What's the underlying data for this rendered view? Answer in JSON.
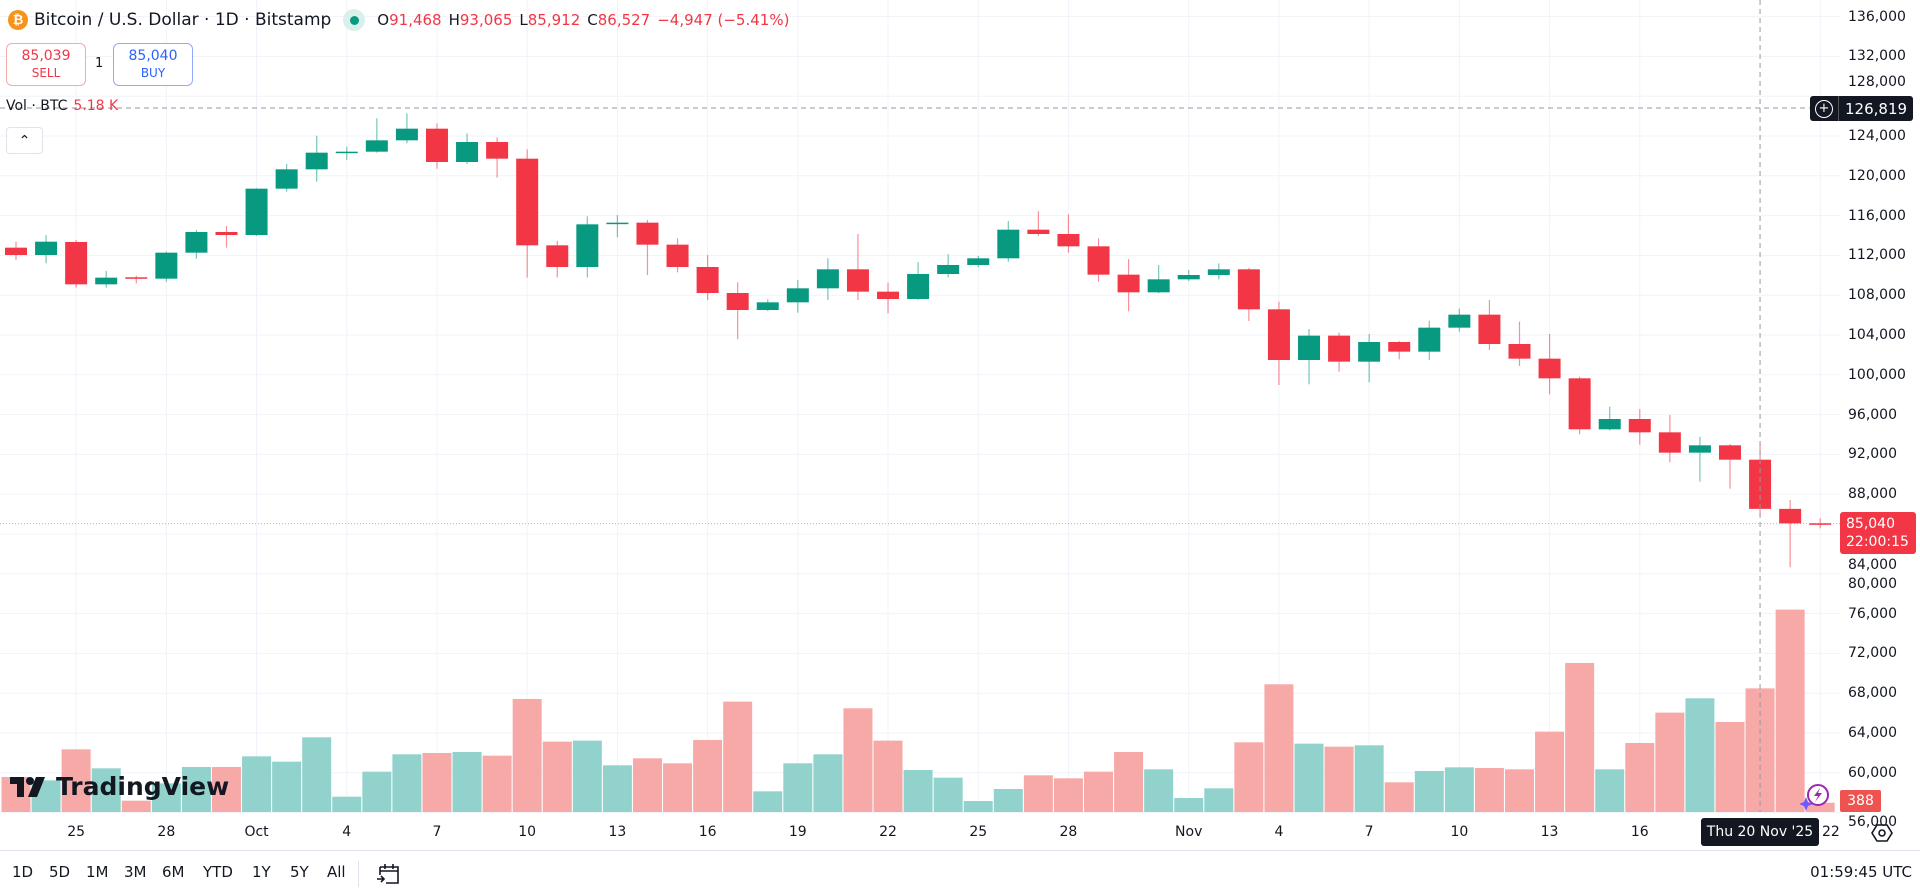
{
  "header": {
    "title": "Bitcoin / U.S. Dollar · 1D · Bitstamp",
    "logo_glyph": "₿",
    "market_status": "open",
    "ohlc": {
      "o_label": "O",
      "o": "91,468",
      "h_label": "H",
      "h": "93,065",
      "l_label": "L",
      "l": "85,912",
      "c_label": "C",
      "c": "86,527"
    },
    "change": "−4,947 (−5.41%)"
  },
  "trade": {
    "sell_price": "85,039",
    "sell_label": "SELL",
    "quantity": "1",
    "buy_price": "85,040",
    "buy_label": "BUY"
  },
  "volume_legend": {
    "label": "Vol · BTC",
    "value": "5.18 K"
  },
  "crosshair": {
    "price": "126,819",
    "date": "Thu 20 Nov '25"
  },
  "last_price": {
    "price": "85,040",
    "countdown": "22:00:15"
  },
  "last_volume": "388",
  "logo": "TradingView",
  "toolbar": {
    "ranges": [
      "1D",
      "5D",
      "1M",
      "3M",
      "6M",
      "YTD",
      "1Y",
      "5Y",
      "All"
    ],
    "clock": "01:59:45 UTC"
  },
  "colors": {
    "up": "#089981",
    "down": "#f23645",
    "vol_up": "#92d2cc",
    "vol_down": "#f7a9a7",
    "grid": "#f0f3fa"
  },
  "chart_data": {
    "type": "candlestick",
    "symbol": "BTCUSD",
    "interval": "1D",
    "ylim": [
      56000,
      136000
    ],
    "price_ticks": [
      136000,
      132000,
      128000,
      124000,
      120000,
      116000,
      112000,
      108000,
      104000,
      100000,
      96000,
      92000,
      88000,
      84000,
      80000,
      76000,
      72000,
      68000,
      64000,
      60000,
      56000
    ],
    "time_labels": [
      {
        "label": "25",
        "date": "2025-09-25"
      },
      {
        "label": "28",
        "date": "2025-09-28"
      },
      {
        "label": "Oct",
        "date": "2025-10-01"
      },
      {
        "label": "4",
        "date": "2025-10-04"
      },
      {
        "label": "7",
        "date": "2025-10-07"
      },
      {
        "label": "10",
        "date": "2025-10-10"
      },
      {
        "label": "13",
        "date": "2025-10-13"
      },
      {
        "label": "16",
        "date": "2025-10-16"
      },
      {
        "label": "19",
        "date": "2025-10-19"
      },
      {
        "label": "22",
        "date": "2025-10-22"
      },
      {
        "label": "25",
        "date": "2025-10-25"
      },
      {
        "label": "28",
        "date": "2025-10-28"
      },
      {
        "label": "Nov",
        "date": "2025-11-01"
      },
      {
        "label": "4",
        "date": "2025-11-04"
      },
      {
        "label": "7",
        "date": "2025-11-07"
      },
      {
        "label": "10",
        "date": "2025-11-10"
      },
      {
        "label": "13",
        "date": "2025-11-13"
      },
      {
        "label": "16",
        "date": "2025-11-16"
      },
      {
        "label": "22",
        "date": "2025-11-22"
      }
    ],
    "fields": [
      "date",
      "open",
      "high",
      "low",
      "close",
      "volume"
    ],
    "candles": [
      [
        "2025-09-23",
        112778,
        113380,
        111540,
        112040,
        1467
      ],
      [
        "2025-09-24",
        112040,
        114017,
        111203,
        113380,
        1327
      ],
      [
        "2025-09-25",
        113347,
        113548,
        108757,
        109092,
        2626
      ],
      [
        "2025-09-26",
        109092,
        110432,
        108757,
        109762,
        1830
      ],
      [
        "2025-09-27",
        109800,
        109963,
        109193,
        109700,
        475
      ],
      [
        "2025-09-28",
        109662,
        112375,
        109360,
        112275,
        1200
      ],
      [
        "2025-09-29",
        112275,
        114553,
        111672,
        114352,
        1886
      ],
      [
        "2025-09-30",
        114352,
        114955,
        112778,
        114050,
        1886
      ],
      [
        "2025-10-01",
        114050,
        118750,
        113950,
        118707,
        2333
      ],
      [
        "2025-10-02",
        118707,
        121186,
        118406,
        120650,
        2109
      ],
      [
        "2025-10-03",
        120650,
        124034,
        119410,
        122325,
        3129
      ],
      [
        "2025-10-04",
        122325,
        122928,
        121588,
        122425,
        643
      ],
      [
        "2025-10-05",
        122425,
        125775,
        122325,
        123565,
        1690
      ],
      [
        "2025-10-06",
        123565,
        126278,
        123263,
        124737,
        2417
      ],
      [
        "2025-10-07",
        124737,
        125273,
        120717,
        121387,
        2473
      ],
      [
        "2025-10-08",
        121387,
        124268,
        121186,
        123397,
        2515
      ],
      [
        "2025-10-09",
        123397,
        123866,
        119812,
        121722,
        2361
      ],
      [
        "2025-10-10",
        121722,
        122660,
        109762,
        113012,
        4736
      ],
      [
        "2025-10-11",
        113012,
        113481,
        109796,
        110835,
        2948
      ],
      [
        "2025-10-12",
        110835,
        115926,
        109796,
        115122,
        2990
      ],
      [
        "2025-10-13",
        115156,
        116060,
        113816,
        115290,
        1956
      ],
      [
        "2025-10-14",
        115290,
        115558,
        110030,
        113079,
        2249
      ],
      [
        "2025-10-15",
        113079,
        113716,
        110298,
        110835,
        2040
      ],
      [
        "2025-10-16",
        110835,
        112040,
        107518,
        108222,
        3018
      ],
      [
        "2025-10-17",
        108222,
        109293,
        103565,
        106513,
        4624
      ],
      [
        "2025-10-18",
        106513,
        107585,
        106400,
        107283,
        866
      ],
      [
        "2025-10-19",
        107283,
        109528,
        106245,
        108691,
        2040
      ],
      [
        "2025-10-20",
        108691,
        111706,
        107518,
        110600,
        2417
      ],
      [
        "2025-10-21",
        110600,
        114151,
        107518,
        108356,
        4345
      ],
      [
        "2025-10-22",
        108356,
        109260,
        106178,
        107618,
        2990
      ],
      [
        "2025-10-23",
        107618,
        111337,
        107500,
        110131,
        1760
      ],
      [
        "2025-10-24",
        110131,
        112107,
        109796,
        111036,
        1439
      ],
      [
        "2025-10-25",
        111036,
        111940,
        110801,
        111706,
        461
      ],
      [
        "2025-10-26",
        111706,
        115458,
        111370,
        114586,
        964
      ],
      [
        "2025-10-27",
        114586,
        116429,
        113950,
        114151,
        1537
      ],
      [
        "2025-10-28",
        114151,
        116127,
        112275,
        112911,
        1411
      ],
      [
        "2025-10-29",
        112911,
        113716,
        109360,
        110064,
        1690
      ],
      [
        "2025-10-30",
        110064,
        111639,
        106379,
        108289,
        2515
      ],
      [
        "2025-10-31",
        108289,
        111036,
        108200,
        109595,
        1788
      ],
      [
        "2025-11-01",
        109595,
        110533,
        109428,
        110030,
        587
      ],
      [
        "2025-11-02",
        110030,
        111203,
        109595,
        110600,
        992
      ],
      [
        "2025-11-03",
        110600,
        110734,
        105408,
        106580,
        2920
      ],
      [
        "2025-11-04",
        106580,
        107351,
        98976,
        101488,
        5351
      ],
      [
        "2025-11-05",
        101488,
        104603,
        99043,
        103934,
        2864
      ],
      [
        "2025-11-06",
        103934,
        104235,
        100316,
        101320,
        2738
      ],
      [
        "2025-11-07",
        101320,
        104101,
        99244,
        103297,
        2794
      ],
      [
        "2025-11-08",
        103297,
        103398,
        101555,
        102325,
        1243
      ],
      [
        "2025-11-09",
        102325,
        105441,
        101488,
        104738,
        1718
      ],
      [
        "2025-11-10",
        104738,
        106647,
        104336,
        106044,
        1872
      ],
      [
        "2025-11-11",
        106044,
        107518,
        102493,
        103096,
        1844
      ],
      [
        "2025-11-12",
        103096,
        105341,
        100885,
        101622,
        1788
      ],
      [
        "2025-11-13",
        101622,
        104101,
        98038,
        99645,
        3367
      ],
      [
        "2025-11-14",
        99645,
        99813,
        94018,
        94520,
        6245
      ],
      [
        "2025-11-15",
        94520,
        96798,
        94400,
        95558,
        1788
      ],
      [
        "2025-11-16",
        95558,
        96564,
        92979,
        94218,
        2892
      ],
      [
        "2025-11-17",
        94218,
        95960,
        91204,
        92175,
        4163
      ],
      [
        "2025-11-18",
        92175,
        93783,
        89260,
        92912,
        4764
      ],
      [
        "2025-11-19",
        92912,
        93046,
        88557,
        91468,
        3772
      ],
      [
        "2025-11-20",
        91468,
        93065,
        85912,
        86527,
        5180
      ],
      [
        "2025-11-21",
        86527,
        87418,
        80651,
        85073,
        8480
      ],
      [
        "2025-11-22",
        85073,
        85575,
        84570,
        85040,
        388
      ]
    ],
    "crosshair_date": "2025-11-20",
    "crosshair_price": 126819,
    "last_price": 85040
  }
}
